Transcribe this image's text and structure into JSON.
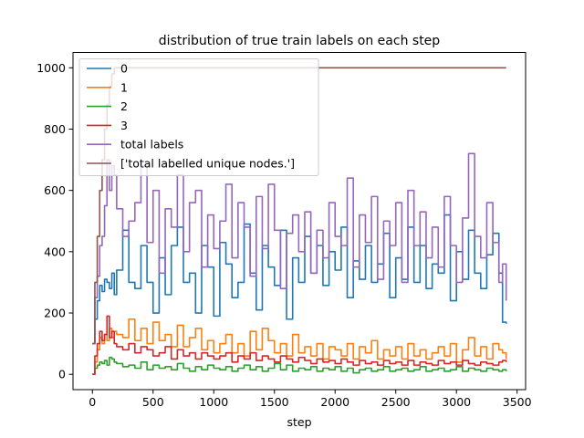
{
  "chart_data": {
    "type": "line",
    "title": "distribution of true train labels on each step",
    "xlabel": "step",
    "ylabel": "",
    "xlim": [
      -160,
      3570
    ],
    "ylim": [
      -50,
      1050
    ],
    "xticks": [
      0,
      500,
      1000,
      1500,
      2000,
      2500,
      3000,
      3500
    ],
    "yticks": [
      0,
      200,
      400,
      600,
      800,
      1000
    ],
    "grid": false,
    "legend_position": "upper-left",
    "series": [
      {
        "name": "0",
        "color": "#1f77b4",
        "x": [
          0,
          20,
          40,
          60,
          80,
          100,
          120,
          140,
          160,
          180,
          200,
          250,
          300,
          350,
          400,
          450,
          500,
          550,
          600,
          650,
          700,
          750,
          800,
          850,
          900,
          950,
          1000,
          1050,
          1100,
          1150,
          1200,
          1250,
          1300,
          1350,
          1400,
          1450,
          1500,
          1550,
          1600,
          1650,
          1700,
          1750,
          1800,
          1850,
          1900,
          1950,
          2000,
          2050,
          2100,
          2150,
          2200,
          2250,
          2300,
          2350,
          2400,
          2450,
          2500,
          2550,
          2600,
          2650,
          2700,
          2750,
          2800,
          2850,
          2900,
          2950,
          3000,
          3050,
          3100,
          3150,
          3200,
          3250,
          3300,
          3350,
          3380,
          3410
        ],
        "y": [
          100,
          180,
          240,
          290,
          270,
          310,
          300,
          280,
          330,
          260,
          340,
          470,
          300,
          280,
          420,
          300,
          200,
          380,
          260,
          420,
          480,
          300,
          330,
          200,
          420,
          350,
          190,
          430,
          360,
          250,
          300,
          490,
          330,
          210,
          420,
          350,
          290,
          470,
          180,
          380,
          300,
          450,
          330,
          420,
          290,
          400,
          340,
          480,
          250,
          370,
          310,
          420,
          300,
          360,
          460,
          250,
          380,
          310,
          480,
          300,
          420,
          280,
          360,
          330,
          520,
          240,
          400,
          310,
          470,
          330,
          280,
          390,
          460,
          330,
          170,
          165
        ]
      },
      {
        "name": "1",
        "color": "#ff7f0e",
        "x": [
          0,
          20,
          40,
          60,
          80,
          100,
          120,
          140,
          160,
          180,
          200,
          250,
          300,
          350,
          400,
          450,
          500,
          550,
          600,
          650,
          700,
          750,
          800,
          850,
          900,
          950,
          1000,
          1050,
          1100,
          1150,
          1200,
          1250,
          1300,
          1350,
          1400,
          1450,
          1500,
          1550,
          1600,
          1650,
          1700,
          1750,
          1800,
          1850,
          1900,
          1950,
          2000,
          2050,
          2100,
          2150,
          2200,
          2250,
          2300,
          2350,
          2400,
          2450,
          2500,
          2550,
          2600,
          2650,
          2700,
          2750,
          2800,
          2850,
          2900,
          2950,
          3000,
          3050,
          3100,
          3150,
          3200,
          3250,
          3300,
          3350,
          3380,
          3410
        ],
        "y": [
          0,
          40,
          80,
          120,
          100,
          130,
          110,
          150,
          120,
          140,
          130,
          120,
          180,
          110,
          150,
          100,
          170,
          110,
          130,
          90,
          160,
          90,
          120,
          150,
          80,
          110,
          70,
          100,
          130,
          70,
          100,
          60,
          140,
          80,
          150,
          110,
          70,
          100,
          60,
          130,
          70,
          90,
          60,
          100,
          50,
          90,
          80,
          60,
          100,
          50,
          90,
          70,
          110,
          50,
          80,
          60,
          90,
          50,
          100,
          60,
          80,
          50,
          70,
          90,
          60,
          100,
          40,
          80,
          120,
          60,
          90,
          50,
          100,
          80,
          70,
          50
        ]
      },
      {
        "name": "2",
        "color": "#2ca02c",
        "x": [
          0,
          20,
          40,
          60,
          80,
          100,
          120,
          140,
          160,
          180,
          200,
          250,
          300,
          350,
          400,
          450,
          500,
          550,
          600,
          650,
          700,
          750,
          800,
          850,
          900,
          950,
          1000,
          1050,
          1100,
          1150,
          1200,
          1250,
          1300,
          1350,
          1400,
          1450,
          1500,
          1550,
          1600,
          1650,
          1700,
          1750,
          1800,
          1850,
          1900,
          1950,
          2000,
          2050,
          2100,
          2150,
          2200,
          2250,
          2300,
          2350,
          2400,
          2450,
          2500,
          2550,
          2600,
          2650,
          2700,
          2750,
          2800,
          2850,
          2900,
          2950,
          3000,
          3050,
          3100,
          3150,
          3200,
          3250,
          3300,
          3350,
          3380,
          3410
        ],
        "y": [
          0,
          20,
          30,
          40,
          35,
          45,
          30,
          55,
          50,
          40,
          35,
          25,
          30,
          20,
          40,
          15,
          30,
          20,
          25,
          15,
          35,
          20,
          10,
          25,
          15,
          30,
          20,
          15,
          25,
          10,
          20,
          30,
          15,
          25,
          10,
          20,
          35,
          15,
          30,
          10,
          20,
          15,
          25,
          10,
          20,
          15,
          25,
          10,
          20,
          5,
          15,
          20,
          10,
          15,
          25,
          10,
          15,
          20,
          10,
          15,
          25,
          10,
          15,
          20,
          10,
          15,
          25,
          10,
          20,
          15,
          10,
          20,
          15,
          10,
          15,
          10
        ]
      },
      {
        "name": "3",
        "color": "#d62728",
        "x": [
          0,
          20,
          40,
          60,
          80,
          100,
          120,
          140,
          160,
          180,
          200,
          250,
          300,
          350,
          400,
          450,
          500,
          550,
          600,
          650,
          700,
          750,
          800,
          850,
          900,
          950,
          1000,
          1050,
          1100,
          1150,
          1200,
          1250,
          1300,
          1350,
          1400,
          1450,
          1500,
          1550,
          1600,
          1650,
          1700,
          1750,
          1800,
          1850,
          1900,
          1950,
          2000,
          2050,
          2100,
          2150,
          2200,
          2250,
          2300,
          2350,
          2400,
          2450,
          2500,
          2550,
          2600,
          2650,
          2700,
          2750,
          2800,
          2850,
          2900,
          2950,
          3000,
          3050,
          3100,
          3150,
          3200,
          3250,
          3300,
          3350,
          3380,
          3410
        ],
        "y": [
          0,
          60,
          100,
          140,
          110,
          130,
          190,
          120,
          140,
          100,
          90,
          80,
          100,
          70,
          90,
          80,
          60,
          70,
          90,
          50,
          80,
          60,
          70,
          50,
          70,
          60,
          50,
          60,
          70,
          40,
          60,
          50,
          70,
          45,
          60,
          50,
          40,
          60,
          50,
          40,
          55,
          45,
          35,
          50,
          40,
          45,
          35,
          50,
          40,
          30,
          45,
          35,
          40,
          30,
          45,
          35,
          40,
          30,
          45,
          30,
          40,
          35,
          30,
          45,
          35,
          40,
          30,
          45,
          35,
          30,
          40,
          35,
          30,
          40,
          45,
          40
        ]
      },
      {
        "name": "total labels",
        "color": "#9467bd",
        "x": [
          0,
          20,
          40,
          60,
          80,
          100,
          120,
          140,
          160,
          180,
          200,
          250,
          300,
          350,
          400,
          450,
          500,
          550,
          600,
          650,
          700,
          750,
          800,
          850,
          900,
          950,
          1000,
          1050,
          1100,
          1150,
          1200,
          1250,
          1300,
          1350,
          1400,
          1450,
          1500,
          1550,
          1600,
          1650,
          1700,
          1750,
          1800,
          1850,
          1900,
          1950,
          2000,
          2050,
          2100,
          2150,
          2200,
          2250,
          2300,
          2350,
          2400,
          2450,
          2500,
          2550,
          2600,
          2650,
          2700,
          2750,
          2800,
          2850,
          2900,
          2950,
          3000,
          3050,
          3100,
          3150,
          3200,
          3250,
          3300,
          3350,
          3380,
          3410
        ],
        "y": [
          100,
          250,
          320,
          420,
          450,
          550,
          700,
          600,
          680,
          650,
          540,
          450,
          500,
          560,
          680,
          430,
          600,
          330,
          540,
          480,
          650,
          400,
          560,
          600,
          350,
          520,
          410,
          500,
          620,
          380,
          560,
          480,
          320,
          580,
          410,
          620,
          470,
          280,
          460,
          520,
          400,
          530,
          330,
          470,
          380,
          560,
          450,
          420,
          640,
          350,
          520,
          430,
          580,
          310,
          500,
          420,
          560,
          300,
          600,
          420,
          530,
          380,
          480,
          350,
          580,
          420,
          300,
          510,
          720,
          450,
          380,
          560,
          430,
          300,
          360,
          240
        ]
      },
      {
        "name": "['total labelled unique nodes.']",
        "color": "#8c564b",
        "x": [
          0,
          20,
          40,
          60,
          80,
          100,
          120,
          140,
          160,
          180,
          200,
          250,
          3410
        ],
        "y": [
          100,
          300,
          450,
          600,
          700,
          800,
          880,
          940,
          980,
          1000,
          1000,
          1000,
          1000
        ]
      }
    ]
  }
}
